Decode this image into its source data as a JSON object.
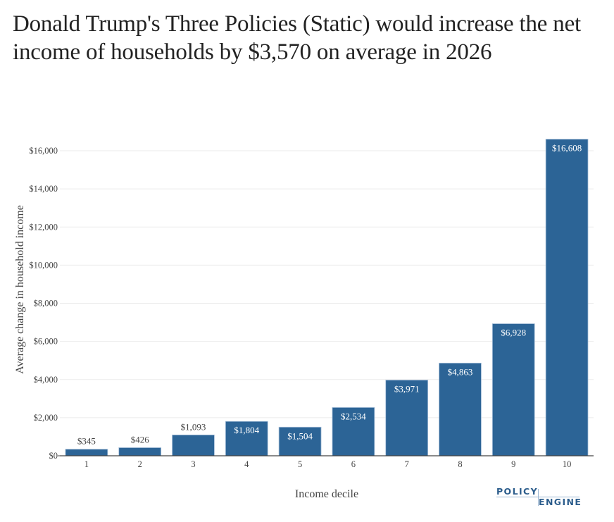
{
  "chart_data": {
    "type": "bar",
    "title": "Donald Trump's Three Policies (Static) would increase the net income of households by $3,570 on average in 2026",
    "xlabel": "Income decile",
    "ylabel": "Average change in household income",
    "categories": [
      "1",
      "2",
      "3",
      "4",
      "5",
      "6",
      "7",
      "8",
      "9",
      "10"
    ],
    "values": [
      345,
      426,
      1093,
      1804,
      1504,
      2534,
      3971,
      4863,
      6928,
      16608
    ],
    "data_labels": [
      "$345",
      "$426",
      "$1,093",
      "$1,804",
      "$1,504",
      "$2,534",
      "$3,971",
      "$4,863",
      "$6,928",
      "$16,608"
    ],
    "ylim": [
      0,
      16608
    ],
    "yticks": [
      0,
      2000,
      4000,
      6000,
      8000,
      10000,
      12000,
      14000,
      16000
    ],
    "ytick_labels": [
      "$0",
      "$2,000",
      "$4,000",
      "$6,000",
      "$8,000",
      "$10,000",
      "$12,000",
      "$14,000",
      "$16,000"
    ],
    "grid": true,
    "legend": "none",
    "bar_color": "#2c6496",
    "bar_outline_color": "#a9c1da"
  },
  "branding": {
    "logo_top": "POLICY",
    "logo_bottom": "ENGINE",
    "logo_color": "#2c5d8c"
  }
}
